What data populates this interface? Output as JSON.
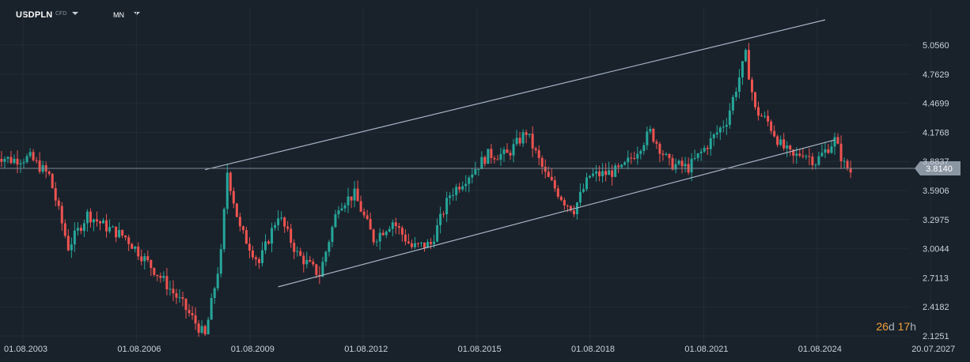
{
  "toolbar": {
    "symbol": "USDPLN",
    "symbol_type": "CFD",
    "timeframe": "MN",
    "symbol_dropdown_icon": "caret-down",
    "timeframe_dropdown_icon": "caret-down"
  },
  "countdown": {
    "days": "26",
    "days_unit": "d",
    "hours": "17",
    "hours_unit": "h"
  },
  "colors": {
    "background": "#19222b",
    "grid": "#222c36",
    "up": "#26a69a",
    "down": "#ef5350",
    "trendline": "#a6b3c5",
    "price_line": "#7d8894",
    "price_tag": "#8b96a3",
    "countdown_number": "#f2a03a"
  },
  "chart_data": {
    "type": "candlestick",
    "title": "",
    "y_ticks": [
      "5.0560",
      "4.7629",
      "4.4699",
      "4.1768",
      "3.8837",
      "3.5906",
      "3.2975",
      "3.0044",
      "2.7113",
      "2.4182",
      "2.1251"
    ],
    "x_ticks": [
      "01.08.2003",
      "01.08.2006",
      "01.08.2009",
      "01.08.2012",
      "01.08.2015",
      "01.08.2018",
      "01.08.2021",
      "01.08.2024",
      "20.07.2027"
    ],
    "ylim": [
      2.07,
      5.42
    ],
    "x_start": "2003-01",
    "current_price": "3.8140",
    "current_price_value": 3.814,
    "grid": true,
    "trendlines": [
      {
        "from": {
          "date": "2008-07",
          "value": 3.8
        },
        "to": {
          "date": "2024-10",
          "value": 5.31
        }
      },
      {
        "from": {
          "date": "2010-06",
          "value": 2.62
        },
        "to": {
          "date": "2025-01",
          "value": 4.1
        }
      }
    ],
    "closes": [
      {
        "date": "2003-01",
        "close": 3.95
      },
      {
        "date": "2003-06",
        "close": 3.9
      },
      {
        "date": "2003-12",
        "close": 3.92
      },
      {
        "date": "2004-06",
        "close": 3.74
      },
      {
        "date": "2004-12",
        "close": 3.02
      },
      {
        "date": "2005-06",
        "close": 3.35
      },
      {
        "date": "2005-12",
        "close": 3.22
      },
      {
        "date": "2006-06",
        "close": 3.12
      },
      {
        "date": "2006-12",
        "close": 2.9
      },
      {
        "date": "2007-06",
        "close": 2.68
      },
      {
        "date": "2007-12",
        "close": 2.44
      },
      {
        "date": "2008-07",
        "close": 2.12
      },
      {
        "date": "2008-12",
        "close": 2.95
      },
      {
        "date": "2009-02",
        "close": 3.78
      },
      {
        "date": "2009-06",
        "close": 3.2
      },
      {
        "date": "2009-12",
        "close": 2.86
      },
      {
        "date": "2010-06",
        "close": 3.35
      },
      {
        "date": "2010-12",
        "close": 2.95
      },
      {
        "date": "2011-07",
        "close": 2.74
      },
      {
        "date": "2012-01",
        "close": 3.45
      },
      {
        "date": "2012-06",
        "close": 3.55
      },
      {
        "date": "2012-12",
        "close": 3.1
      },
      {
        "date": "2013-06",
        "close": 3.28
      },
      {
        "date": "2013-12",
        "close": 3.02
      },
      {
        "date": "2014-06",
        "close": 3.05
      },
      {
        "date": "2014-12",
        "close": 3.55
      },
      {
        "date": "2015-06",
        "close": 3.75
      },
      {
        "date": "2015-12",
        "close": 3.95
      },
      {
        "date": "2016-06",
        "close": 3.95
      },
      {
        "date": "2016-12",
        "close": 4.18
      },
      {
        "date": "2017-06",
        "close": 3.75
      },
      {
        "date": "2017-12",
        "close": 3.48
      },
      {
        "date": "2018-03",
        "close": 3.4
      },
      {
        "date": "2018-08",
        "close": 3.74
      },
      {
        "date": "2019-01",
        "close": 3.76
      },
      {
        "date": "2019-06",
        "close": 3.8
      },
      {
        "date": "2019-10",
        "close": 3.96
      },
      {
        "date": "2020-03",
        "close": 4.18
      },
      {
        "date": "2020-09",
        "close": 3.86
      },
      {
        "date": "2021-03",
        "close": 3.82
      },
      {
        "date": "2021-09",
        "close": 4.05
      },
      {
        "date": "2022-03",
        "close": 4.3
      },
      {
        "date": "2022-09",
        "close": 4.95
      },
      {
        "date": "2022-12",
        "close": 4.4
      },
      {
        "date": "2023-04",
        "close": 4.28
      },
      {
        "date": "2023-08",
        "close": 4.05
      },
      {
        "date": "2023-12",
        "close": 3.92
      },
      {
        "date": "2024-03",
        "close": 3.98
      },
      {
        "date": "2024-07",
        "close": 3.88
      },
      {
        "date": "2025-01",
        "close": 4.1
      },
      {
        "date": "2025-04",
        "close": 3.85
      },
      {
        "date": "2025-06",
        "close": 3.78
      }
    ]
  }
}
